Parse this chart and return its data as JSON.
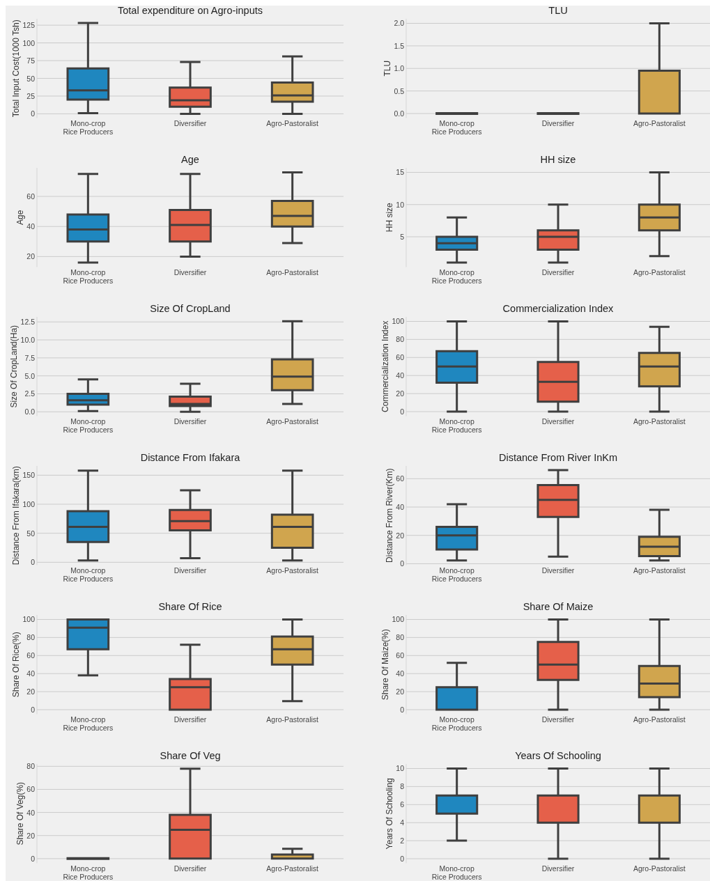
{
  "chart_data": [
    {
      "type": "box",
      "title": "Total expenditure on Agro-inputs",
      "ylabel": "Total Input Cost(1000 Tsh)",
      "categories": [
        "Mono-crop\nRice Producers",
        "Diversifier",
        "Agro-Pastoralist"
      ],
      "colors": [
        "#1f87bf",
        "#e5604a",
        "#d0a54e"
      ],
      "boxes": [
        {
          "low": 1,
          "q1": 20,
          "median": 33,
          "q3": 64,
          "high": 128
        },
        {
          "low": 0,
          "q1": 10,
          "median": 19,
          "q3": 37,
          "high": 73
        },
        {
          "low": 0,
          "q1": 17,
          "median": 26,
          "q3": 44,
          "high": 81
        }
      ],
      "ylim": [
        -6,
        134
      ],
      "yticks": [
        0,
        25,
        50,
        75,
        100,
        125
      ],
      "grid": "y"
    },
    {
      "type": "box",
      "title": "TLU",
      "ylabel": "TLU",
      "categories": [
        "Mono-crop\nRice Producers",
        "Diversifier",
        "Agro-Pastoralist"
      ],
      "colors": [
        "#3f3f3f",
        "#3f3f3f",
        "#d0a54e"
      ],
      "boxes": [
        {
          "low": 0,
          "q1": 0,
          "median": 0,
          "q3": 0,
          "high": 0
        },
        {
          "low": 0,
          "q1": 0,
          "median": 0,
          "q3": 0,
          "high": 0
        },
        {
          "low": 0,
          "q1": 0,
          "median": 0,
          "q3": 0.95,
          "high": 2
        }
      ],
      "ylim": [
        -0.1,
        2.1
      ],
      "yticks": [
        {
          "value": 0,
          "label": "0.0"
        },
        0.5,
        {
          "value": 1,
          "label": "1.0"
        },
        1.5,
        {
          "value": 2,
          "label": "2.0"
        }
      ],
      "grid": "y"
    },
    {
      "type": "box",
      "title": "Age",
      "ylabel": "Age",
      "categories": [
        "Mono-crop\nRice Producers",
        "Diversifier",
        "Agro-Pastoralist"
      ],
      "colors": [
        "#1f87bf",
        "#e5604a",
        "#d0a54e"
      ],
      "boxes": [
        {
          "low": 16,
          "q1": 30,
          "median": 38,
          "q3": 48,
          "high": 75
        },
        {
          "low": 20,
          "q1": 30,
          "median": 41,
          "q3": 51,
          "high": 75
        },
        {
          "low": 29,
          "q1": 40,
          "median": 47,
          "q3": 57,
          "high": 76
        }
      ],
      "ylim": [
        13,
        79
      ],
      "yticks": [
        20,
        40,
        60
      ],
      "grid": "y"
    },
    {
      "type": "box",
      "title": "HH size",
      "ylabel": "HH size",
      "categories": [
        "Mono-crop\nRice Producers",
        "Diversifier",
        "Agro-Pastoralist"
      ],
      "colors": [
        "#1f87bf",
        "#e5604a",
        "#d0a54e"
      ],
      "boxes": [
        {
          "low": 1,
          "q1": 3,
          "median": 4,
          "q3": 5,
          "high": 8
        },
        {
          "low": 1,
          "q1": 3,
          "median": 5,
          "q3": 6,
          "high": 10
        },
        {
          "low": 2,
          "q1": 6,
          "median": 8,
          "q3": 10,
          "high": 15
        }
      ],
      "ylim": [
        0.3,
        15.7
      ],
      "yticks": [
        5,
        10,
        15
      ],
      "grid": "y"
    },
    {
      "type": "box",
      "title": "Size Of CropLand",
      "ylabel": "Size Of CropLand(Ha)",
      "categories": [
        "Mono-crop\nRice Producers",
        "Diversifier",
        "Agro-Pastoralist"
      ],
      "colors": [
        "#1f87bf",
        "#e5604a",
        "#d0a54e"
      ],
      "boxes": [
        {
          "low": 0.1,
          "q1": 1,
          "median": 1.6,
          "q3": 2.5,
          "high": 4.5
        },
        {
          "low": 0,
          "q1": 0.8,
          "median": 1.1,
          "q3": 2.1,
          "high": 3.9
        },
        {
          "low": 1.1,
          "q1": 3,
          "median": 4.9,
          "q3": 7.3,
          "high": 12.6
        }
      ],
      "ylim": [
        -0.6,
        13.2
      ],
      "yticks": [
        {
          "value": 0,
          "label": "0.0"
        },
        2.5,
        {
          "value": 5,
          "label": "5.0"
        },
        7.5,
        {
          "value": 10,
          "label": "10.0"
        },
        12.5
      ],
      "grid": "y"
    },
    {
      "type": "box",
      "title": "Commercialization Index",
      "ylabel": "Commercialization Index",
      "categories": [
        "Mono-crop\nRice Producers",
        "Diversifier",
        "Agro-Pastoralist"
      ],
      "colors": [
        "#1f87bf",
        "#e5604a",
        "#d0a54e"
      ],
      "boxes": [
        {
          "low": 0,
          "q1": 32,
          "median": 50,
          "q3": 67,
          "high": 100
        },
        {
          "low": 0,
          "q1": 11,
          "median": 33,
          "q3": 55,
          "high": 100
        },
        {
          "low": 0,
          "q1": 28,
          "median": 50,
          "q3": 65,
          "high": 94
        }
      ],
      "ylim": [
        -5,
        105
      ],
      "yticks": [
        0,
        20,
        40,
        60,
        80,
        100
      ],
      "grid": "y"
    },
    {
      "type": "box",
      "title": "Distance From Ifakara",
      "ylabel": "Distance From Ifakara(km)",
      "categories": [
        "Mono-crop\nRice Producers",
        "Diversifier",
        "Agro-Pastoralist"
      ],
      "colors": [
        "#1f87bf",
        "#e5604a",
        "#d0a54e"
      ],
      "boxes": [
        {
          "low": 3,
          "q1": 35,
          "median": 61,
          "q3": 88,
          "high": 158
        },
        {
          "low": 7,
          "q1": 55,
          "median": 71,
          "q3": 90,
          "high": 124
        },
        {
          "low": 3,
          "q1": 25,
          "median": 61,
          "q3": 82,
          "high": 158
        }
      ],
      "ylim": [
        -5,
        166
      ],
      "yticks": [
        0,
        50,
        100,
        150
      ],
      "grid": "y"
    },
    {
      "type": "box",
      "title": "Distance From River InKm",
      "ylabel": "Distance From River(Km)",
      "categories": [
        "Mono-crop\nRice Producers",
        "Diversifier",
        "Agro-Pastoralist"
      ],
      "colors": [
        "#1f87bf",
        "#e5604a",
        "#d0a54e"
      ],
      "boxes": [
        {
          "low": 2.3,
          "q1": 10,
          "median": 20,
          "q3": 26,
          "high": 42
        },
        {
          "low": 5,
          "q1": 33,
          "median": 45,
          "q3": 55.5,
          "high": 66
        },
        {
          "low": 2.3,
          "q1": 5.4,
          "median": 12,
          "q3": 19,
          "high": 38
        }
      ],
      "ylim": [
        -1,
        69
      ],
      "yticks": [
        0,
        20,
        40,
        60
      ],
      "grid": "y"
    },
    {
      "type": "box",
      "title": "Share Of Rice",
      "ylabel": "Share Of Rice(%)",
      "categories": [
        "Mono-crop\nRice Producers",
        "Diversifier",
        "Agro-Pastoralist"
      ],
      "colors": [
        "#1f87bf",
        "#e5604a",
        "#d0a54e"
      ],
      "boxes": [
        {
          "low": 38,
          "q1": 67,
          "median": 91,
          "q3": 100,
          "high": 100
        },
        {
          "low": 0,
          "q1": 0,
          "median": 25,
          "q3": 34,
          "high": 72
        },
        {
          "low": 9.5,
          "q1": 50,
          "median": 67,
          "q3": 81,
          "high": 100
        }
      ],
      "ylim": [
        -5,
        105
      ],
      "yticks": [
        0,
        20,
        40,
        60,
        80,
        100
      ],
      "grid": "y"
    },
    {
      "type": "box",
      "title": "Share Of Maize",
      "ylabel": "Share Of Maize(%)",
      "categories": [
        "Mono-crop\nRice Producers",
        "Diversifier",
        "Agro-Pastoralist"
      ],
      "colors": [
        "#1f87bf",
        "#e5604a",
        "#d0a54e"
      ],
      "boxes": [
        {
          "low": 0,
          "q1": 0,
          "median": 0,
          "q3": 25,
          "high": 52
        },
        {
          "low": 0,
          "q1": 33,
          "median": 50,
          "q3": 75,
          "high": 100
        },
        {
          "low": 0,
          "q1": 14,
          "median": 29,
          "q3": 48.5,
          "high": 100
        }
      ],
      "ylim": [
        -5,
        105
      ],
      "yticks": [
        0,
        20,
        40,
        60,
        80,
        100
      ],
      "grid": "y"
    },
    {
      "type": "box",
      "title": "Share Of Veg",
      "ylabel": "Share Of Veg(%)",
      "categories": [
        "Mono-crop\nRice Producers",
        "Diversifier",
        "Agro-Pastoralist"
      ],
      "colors": [
        "#3f3f3f",
        "#e5604a",
        "#d0a54e"
      ],
      "boxes": [
        {
          "low": 0,
          "q1": 0,
          "median": 0,
          "q3": 0,
          "high": 0
        },
        {
          "low": 0,
          "q1": 0,
          "median": 25,
          "q3": 38,
          "high": 78
        },
        {
          "low": 0,
          "q1": 0,
          "median": 0,
          "q3": 3.5,
          "high": 8.5
        }
      ],
      "ylim": [
        -4,
        82
      ],
      "yticks": [
        0,
        20,
        40,
        60,
        80
      ],
      "grid": "y"
    },
    {
      "type": "box",
      "title": "Years Of Schooling",
      "ylabel": "Years Of Schooling",
      "categories": [
        "Mono-crop\nRice Producers",
        "Diversifier",
        "Agro-Pastoralist"
      ],
      "colors": [
        "#1f87bf",
        "#e5604a",
        "#d0a54e"
      ],
      "boxes": [
        {
          "low": 2,
          "q1": 5,
          "median": 7,
          "q3": 7,
          "high": 10
        },
        {
          "low": 0,
          "q1": 4,
          "median": 7,
          "q3": 7,
          "high": 10
        },
        {
          "low": 0,
          "q1": 4,
          "median": 7,
          "q3": 7,
          "high": 10
        }
      ],
      "ylim": [
        -0.5,
        10.5
      ],
      "yticks": [
        0,
        2,
        4,
        6,
        8,
        10
      ],
      "grid": "y"
    }
  ]
}
